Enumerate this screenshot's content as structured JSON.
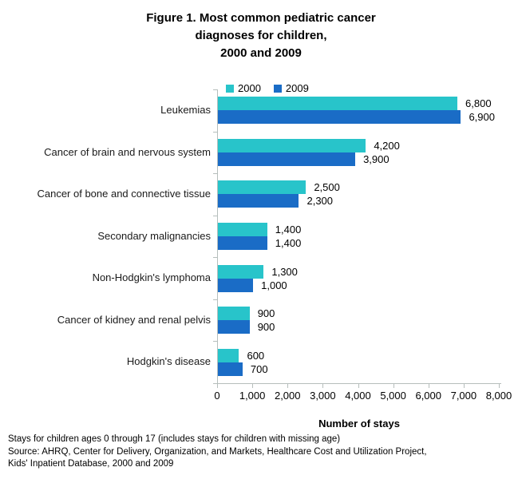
{
  "title": {
    "lines": [
      "Figure 1. Most common pediatric cancer",
      "diagnoses for children,",
      "2000 and 2009"
    ]
  },
  "chart_data": {
    "type": "bar",
    "orientation": "horizontal",
    "title": "Figure 1. Most common pediatric cancer diagnoses for children, 2000 and 2009",
    "categories": [
      "Leukemias",
      "Cancer of brain and nervous system",
      "Cancer of bone and connective tissue",
      "Secondary malignancies",
      "Non-Hodgkin's lymphoma",
      "Cancer of kidney and renal pelvis",
      "Hodgkin's disease"
    ],
    "series": [
      {
        "name": "2000",
        "color": "#28c4ca",
        "values": [
          6800,
          4200,
          2500,
          1400,
          1300,
          900,
          600
        ],
        "labels": [
          "6,800",
          "4,200",
          "2,500",
          "1,400",
          "1,300",
          "900",
          "600"
        ]
      },
      {
        "name": "2009",
        "color": "#1a6cc6",
        "values": [
          6900,
          3900,
          2300,
          1400,
          1000,
          900,
          700
        ],
        "labels": [
          "6,900",
          "3,900",
          "2,300",
          "1,400",
          "1,000",
          "900",
          "700"
        ]
      }
    ],
    "xlabel": "Number of stays",
    "ylabel": "",
    "xlim": [
      0,
      8000
    ],
    "grid": false,
    "legend_position": "top-left",
    "axis_color": "#b6bebc",
    "x_ticks": [
      {
        "value": 0,
        "label": "0"
      },
      {
        "value": 1000,
        "label": "1,000"
      },
      {
        "value": 2000,
        "label": "2,000"
      },
      {
        "value": 3000,
        "label": "3,000"
      },
      {
        "value": 4000,
        "label": "4,000"
      },
      {
        "value": 5000,
        "label": "5,000"
      },
      {
        "value": 6000,
        "label": "6,000"
      },
      {
        "value": 7000,
        "label": "7,000"
      },
      {
        "value": 8000,
        "label": "8,000"
      }
    ]
  },
  "footnotes": {
    "lines": [
      "Stays for children ages 0 through 17 (includes stays for children with missing age)",
      "Source: AHRQ, Center for Delivery, Organization, and Markets, Healthcare Cost and Utilization Project,",
      "Kids' Inpatient Database, 2000 and 2009"
    ]
  }
}
